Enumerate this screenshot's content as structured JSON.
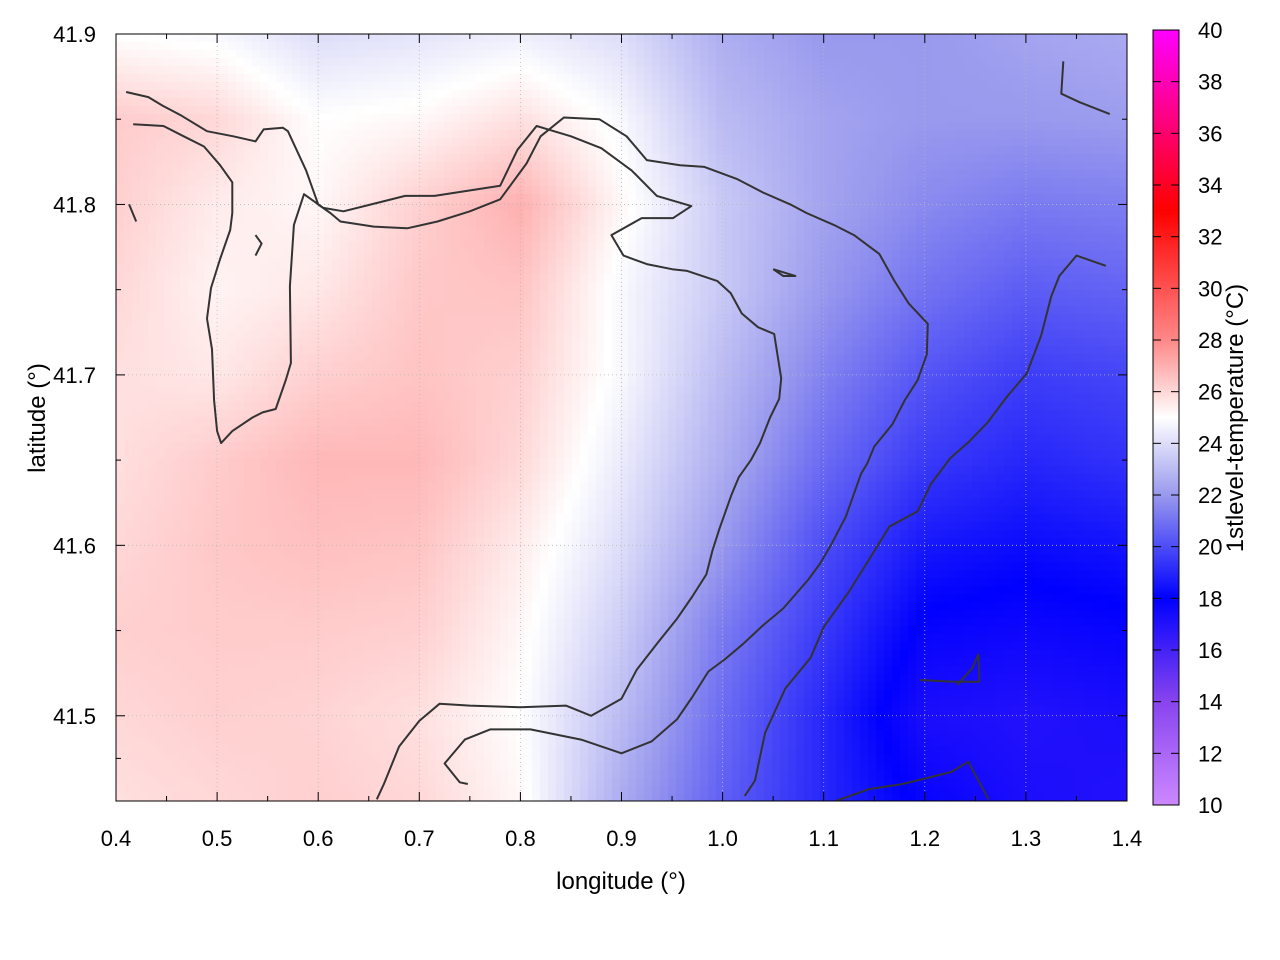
{
  "chart_data": {
    "type": "heatmap",
    "title": "",
    "xlabel": "longitude (°)",
    "ylabel": "latitude (°)",
    "colorbar_label": "1stlevel-temperature (°C)",
    "xlim": [
      0.4,
      1.4
    ],
    "ylim": [
      41.45,
      41.9
    ],
    "xticks": [
      0.4,
      0.5,
      0.6,
      0.7,
      0.8,
      0.9,
      1.0,
      1.1,
      1.2,
      1.3,
      1.4
    ],
    "xtick_labels": [
      "0.4",
      "0.5",
      "0.6",
      "0.7",
      "0.8",
      "0.9",
      "1.0",
      "1.1",
      "1.2",
      "1.3",
      "1.4"
    ],
    "yticks": [
      41.5,
      41.6,
      41.7,
      41.8,
      41.9
    ],
    "ytick_labels": [
      "41.5",
      "41.6",
      "41.7",
      "41.8",
      "41.9"
    ],
    "colorbar_range": [
      10,
      40
    ],
    "colorbar_ticks": [
      10,
      12,
      14,
      16,
      18,
      20,
      22,
      24,
      26,
      28,
      30,
      32,
      34,
      36,
      38,
      40
    ],
    "colorbar_tick_labels": [
      "10",
      "12",
      "14",
      "16",
      "18",
      "20",
      "22",
      "24",
      "26",
      "28",
      "30",
      "32",
      "34",
      "36",
      "38",
      "40"
    ],
    "colormap": [
      {
        "value": 10,
        "color": "#cc88ff"
      },
      {
        "value": 14,
        "color": "#8844ee"
      },
      {
        "value": 18,
        "color": "#0000ff"
      },
      {
        "value": 22,
        "color": "#9999ee"
      },
      {
        "value": 25,
        "color": "#ffffff"
      },
      {
        "value": 28,
        "color": "#ff8888"
      },
      {
        "value": 33,
        "color": "#ff0000"
      },
      {
        "value": 40,
        "color": "#ff00ff"
      }
    ],
    "grid": true,
    "grid_x": [
      0.5,
      0.6,
      0.7,
      0.8,
      0.9,
      1.0,
      1.1,
      1.2,
      1.3
    ],
    "grid_y": [
      41.5,
      41.6,
      41.7,
      41.8
    ],
    "field_x": [
      0.4,
      0.5,
      0.6,
      0.7,
      0.8,
      0.9,
      1.0,
      1.1,
      1.2,
      1.3,
      1.4
    ],
    "field_y": [
      41.45,
      41.5,
      41.55,
      41.6,
      41.65,
      41.7,
      41.75,
      41.8,
      41.85,
      41.9
    ],
    "field_values": [
      [
        25.8,
        26.0,
        26.2,
        26.0,
        25.2,
        22.5,
        20.5,
        19.0,
        17.8,
        17.2,
        17.0
      ],
      [
        26.0,
        26.2,
        26.1,
        25.8,
        25.0,
        23.0,
        20.8,
        19.0,
        17.2,
        17.0,
        17.2
      ],
      [
        26.2,
        26.3,
        26.3,
        26.2,
        25.2,
        23.5,
        21.2,
        19.5,
        17.8,
        17.6,
        17.8
      ],
      [
        26.0,
        26.4,
        26.6,
        26.5,
        25.5,
        24.0,
        22.0,
        20.0,
        18.6,
        18.3,
        18.5
      ],
      [
        25.8,
        26.3,
        26.8,
        26.8,
        26.0,
        24.4,
        22.6,
        20.8,
        19.5,
        19.0,
        19.3
      ],
      [
        25.8,
        25.6,
        26.2,
        26.5,
        26.2,
        24.8,
        23.0,
        21.4,
        20.2,
        19.6,
        19.8
      ],
      [
        26.0,
        25.3,
        25.6,
        26.4,
        26.5,
        24.8,
        23.4,
        22.0,
        21.0,
        20.4,
        20.6
      ],
      [
        26.2,
        25.5,
        25.2,
        26.2,
        27.0,
        25.2,
        23.4,
        22.3,
        21.6,
        21.2,
        21.3
      ],
      [
        26.3,
        26.0,
        25.0,
        25.2,
        25.8,
        24.8,
        23.0,
        22.3,
        22.0,
        22.0,
        22.1
      ],
      [
        25.0,
        24.8,
        24.0,
        24.2,
        24.5,
        24.0,
        22.6,
        22.0,
        22.0,
        22.3,
        22.5
      ]
    ],
    "contour_lines": [
      [
        [
          0.417,
          41.847
        ],
        [
          0.447,
          41.846
        ],
        [
          0.467,
          41.84
        ],
        [
          0.487,
          41.834
        ],
        [
          0.503,
          41.823
        ],
        [
          0.515,
          41.813
        ],
        [
          0.515,
          41.795
        ],
        [
          0.513,
          41.785
        ],
        [
          0.503,
          41.768
        ],
        [
          0.494,
          41.751
        ],
        [
          0.49,
          41.733
        ],
        [
          0.495,
          41.715
        ],
        [
          0.497,
          41.685
        ],
        [
          0.5,
          41.667
        ],
        [
          0.504,
          41.66
        ],
        [
          0.515,
          41.667
        ],
        [
          0.535,
          41.675
        ],
        [
          0.545,
          41.678
        ],
        [
          0.558,
          41.68
        ],
        [
          0.568,
          41.697
        ],
        [
          0.573,
          41.707
        ],
        [
          0.572,
          41.752
        ],
        [
          0.576,
          41.788
        ],
        [
          0.586,
          41.806
        ],
        [
          0.605,
          41.798
        ],
        [
          0.625,
          41.796
        ],
        [
          0.686,
          41.805
        ],
        [
          0.715,
          41.805
        ],
        [
          0.78,
          41.811
        ],
        [
          0.797,
          41.832
        ],
        [
          0.816,
          41.846
        ],
        [
          0.85,
          41.84
        ],
        [
          0.88,
          41.833
        ],
        [
          0.91,
          41.82
        ],
        [
          0.935,
          41.805
        ],
        [
          0.969,
          41.799
        ],
        [
          0.951,
          41.792
        ],
        [
          0.92,
          41.792
        ],
        [
          0.89,
          41.782
        ],
        [
          0.902,
          41.77
        ],
        [
          0.925,
          41.765
        ],
        [
          0.95,
          41.762
        ],
        [
          0.965,
          41.761
        ],
        [
          0.995,
          41.755
        ],
        [
          1.008,
          41.748
        ],
        [
          1.019,
          41.736
        ],
        [
          1.035,
          41.728
        ],
        [
          1.051,
          41.724
        ],
        [
          1.058,
          41.698
        ],
        [
          1.056,
          41.686
        ],
        [
          1.047,
          41.675
        ],
        [
          1.037,
          41.66
        ],
        [
          1.028,
          41.65
        ],
        [
          1.016,
          41.64
        ],
        [
          1.009,
          41.63
        ],
        [
          0.997,
          41.61
        ],
        [
          0.99,
          41.597
        ],
        [
          0.984,
          41.583
        ],
        [
          0.97,
          41.57
        ],
        [
          0.955,
          41.557
        ],
        [
          0.936,
          41.543
        ],
        [
          0.915,
          41.527
        ],
        [
          0.9,
          41.51
        ],
        [
          0.87,
          41.5
        ],
        [
          0.845,
          41.506
        ],
        [
          0.8,
          41.505
        ],
        [
          0.75,
          41.506
        ],
        [
          0.72,
          41.507
        ],
        [
          0.7,
          41.497
        ],
        [
          0.68,
          41.482
        ],
        [
          0.665,
          41.46
        ],
        [
          0.658,
          41.451
        ]
      ],
      [
        [
          0.41,
          41.866
        ],
        [
          0.432,
          41.863
        ],
        [
          0.446,
          41.858
        ],
        [
          0.465,
          41.852
        ],
        [
          0.49,
          41.843
        ],
        [
          0.516,
          41.84
        ],
        [
          0.538,
          41.837
        ],
        [
          0.546,
          41.844
        ],
        [
          0.565,
          41.845
        ],
        [
          0.57,
          41.843
        ],
        [
          0.588,
          41.82
        ],
        [
          0.6,
          41.8
        ],
        [
          0.612,
          41.795
        ],
        [
          0.622,
          41.79
        ],
        [
          0.655,
          41.787
        ],
        [
          0.688,
          41.786
        ],
        [
          0.718,
          41.79
        ],
        [
          0.75,
          41.796
        ],
        [
          0.78,
          41.803
        ],
        [
          0.806,
          41.824
        ],
        [
          0.82,
          41.84
        ],
        [
          0.843,
          41.851
        ],
        [
          0.878,
          41.85
        ],
        [
          0.905,
          41.84
        ],
        [
          0.925,
          41.826
        ],
        [
          0.958,
          41.823
        ],
        [
          0.982,
          41.822
        ],
        [
          1.014,
          41.815
        ],
        [
          1.04,
          41.807
        ],
        [
          1.067,
          41.8
        ],
        [
          1.083,
          41.795
        ],
        [
          1.11,
          41.788
        ],
        [
          1.13,
          41.782
        ],
        [
          1.155,
          41.771
        ],
        [
          1.17,
          41.755
        ],
        [
          1.184,
          41.742
        ],
        [
          1.203,
          41.73
        ],
        [
          1.202,
          41.712
        ],
        [
          1.193,
          41.697
        ],
        [
          1.18,
          41.685
        ],
        [
          1.168,
          41.671
        ],
        [
          1.15,
          41.658
        ],
        [
          1.143,
          41.648
        ],
        [
          1.137,
          41.642
        ],
        [
          1.122,
          41.617
        ],
        [
          1.108,
          41.601
        ],
        [
          1.096,
          41.589
        ],
        [
          1.085,
          41.58
        ],
        [
          1.06,
          41.563
        ],
        [
          1.04,
          41.553
        ],
        [
          1.02,
          41.542
        ],
        [
          1.002,
          41.533
        ],
        [
          0.986,
          41.526
        ],
        [
          0.97,
          41.511
        ],
        [
          0.955,
          41.498
        ],
        [
          0.93,
          41.485
        ],
        [
          0.9,
          41.478
        ],
        [
          0.86,
          41.486
        ],
        [
          0.81,
          41.492
        ],
        [
          0.77,
          41.492
        ],
        [
          0.745,
          41.486
        ],
        [
          0.725,
          41.472
        ],
        [
          0.74,
          41.461
        ],
        [
          0.748,
          41.46
        ]
      ],
      [
        [
          0.42,
          41.79
        ],
        [
          0.413,
          41.8
        ]
      ],
      [
        [
          0.538,
          41.782
        ],
        [
          0.544,
          41.777
        ],
        [
          0.538,
          41.77
        ]
      ],
      [
        [
          1.05,
          41.762
        ],
        [
          1.072,
          41.758
        ],
        [
          1.06,
          41.758
        ],
        [
          1.05,
          41.762
        ]
      ],
      [
        [
          1.195,
          41.521
        ],
        [
          1.228,
          41.52
        ],
        [
          1.254,
          41.52
        ],
        [
          1.253,
          41.536
        ],
        [
          1.247,
          41.528
        ],
        [
          1.232,
          41.518
        ]
      ],
      [
        [
          1.112,
          41.45
        ],
        [
          1.145,
          41.457
        ],
        [
          1.178,
          41.46
        ],
        [
          1.226,
          41.467
        ],
        [
          1.243,
          41.473
        ],
        [
          1.263,
          41.451
        ]
      ],
      [
        [
          1.022,
          41.453
        ],
        [
          1.032,
          41.462
        ],
        [
          1.042,
          41.49
        ],
        [
          1.062,
          41.516
        ],
        [
          1.087,
          41.534
        ],
        [
          1.1,
          41.552
        ],
        [
          1.124,
          41.572
        ],
        [
          1.142,
          41.589
        ],
        [
          1.165,
          41.611
        ],
        [
          1.193,
          41.62
        ],
        [
          1.206,
          41.636
        ],
        [
          1.225,
          41.651
        ],
        [
          1.244,
          41.661
        ],
        [
          1.262,
          41.672
        ],
        [
          1.281,
          41.687
        ],
        [
          1.301,
          41.701
        ],
        [
          1.315,
          41.723
        ],
        [
          1.325,
          41.746
        ],
        [
          1.333,
          41.758
        ],
        [
          1.35,
          41.77
        ],
        [
          1.379,
          41.764
        ]
      ],
      [
        [
          1.337,
          41.884
        ],
        [
          1.335,
          41.865
        ],
        [
          1.353,
          41.86
        ],
        [
          1.383,
          41.853
        ]
      ]
    ]
  }
}
